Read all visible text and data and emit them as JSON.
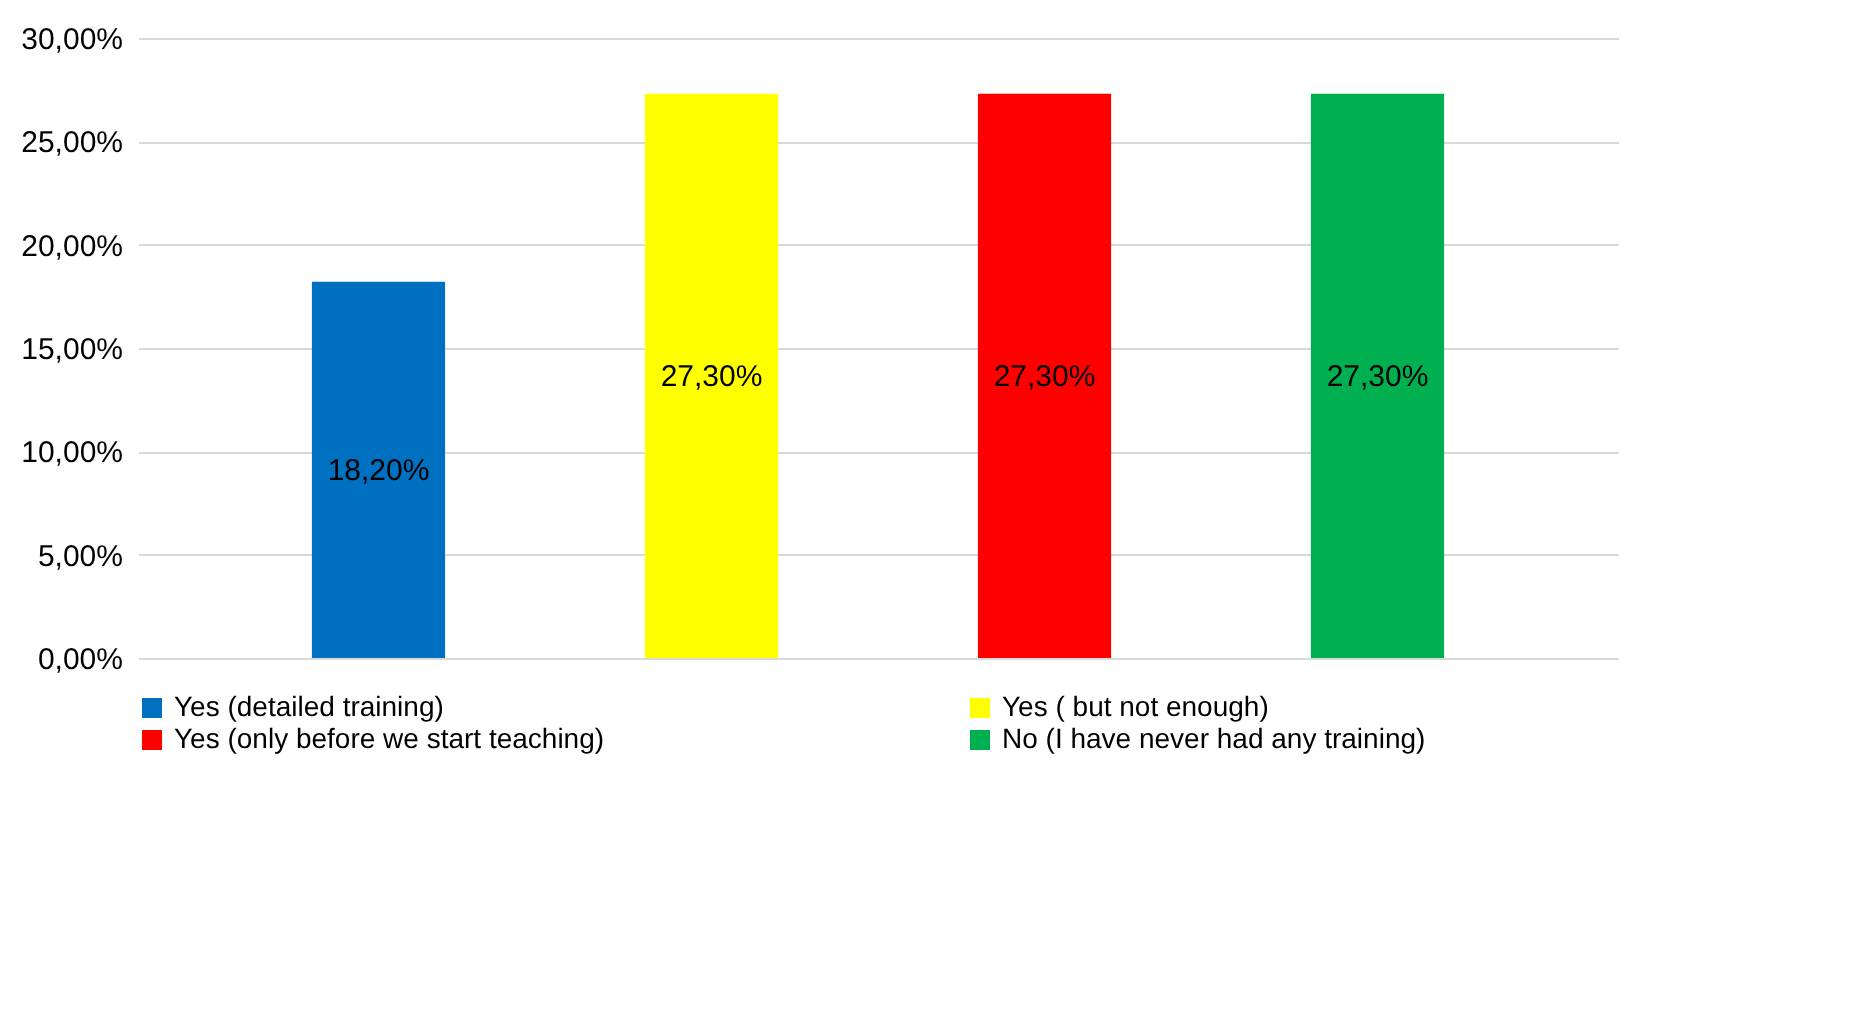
{
  "chart_data": {
    "type": "bar",
    "categories": [
      null
    ],
    "series": [
      {
        "name": "Yes (detailed training)",
        "color": "#0070c0",
        "values": [
          18.2
        ],
        "value_labels": [
          "18,20%"
        ]
      },
      {
        "name": "Yes ( but not enough)",
        "color": "#ffff00",
        "values": [
          27.3
        ],
        "value_labels": [
          "27,30%"
        ]
      },
      {
        "name": "Yes (only before we start teaching)",
        "color": "#ff0000",
        "values": [
          27.3
        ],
        "value_labels": [
          "27,30%"
        ]
      },
      {
        "name": "No (I have never had any training)",
        "color": "#00b050",
        "values": [
          27.3
        ],
        "value_labels": [
          "27,30%"
        ]
      }
    ],
    "ylim": [
      0,
      30
    ],
    "yticks": [
      {
        "value": 0,
        "label": "0,00%"
      },
      {
        "value": 5,
        "label": "5,00%"
      },
      {
        "value": 10,
        "label": "10,00%"
      },
      {
        "value": 15,
        "label": "15,00%"
      },
      {
        "value": 20,
        "label": "20,00%"
      },
      {
        "value": 25,
        "label": "25,00%"
      },
      {
        "value": 30,
        "label": "30,00%"
      }
    ],
    "grid": "y",
    "legend": "bottom",
    "tick_labels": "y"
  }
}
